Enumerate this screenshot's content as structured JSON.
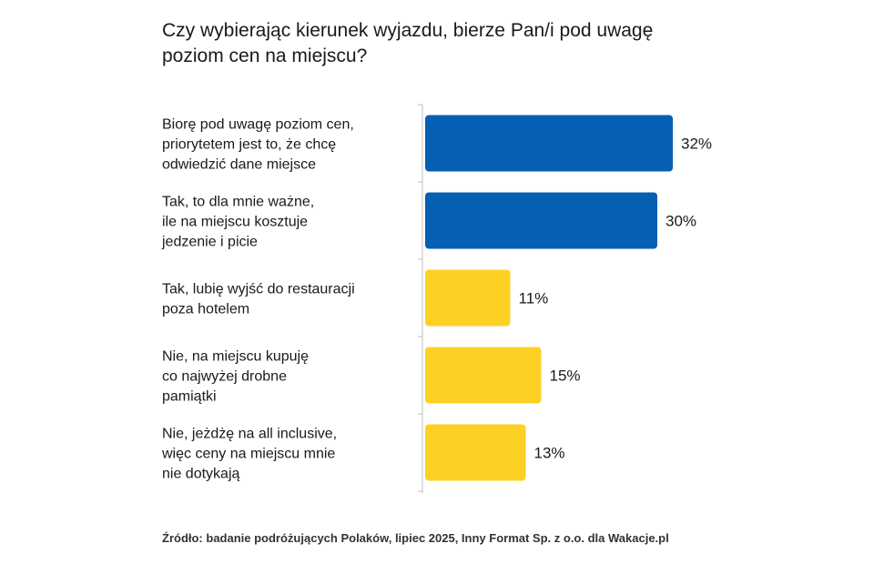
{
  "title": "Czy wybierając kierunek wyjazdu, bierze Pan/i pod uwagę poziom cen na miejscu?",
  "source": "Źródło: badanie podróżujących Polaków, lipiec 2025, Inny Format Sp. z o.o. dla Wakacje.pl",
  "colors": {
    "blue": "#0560b3",
    "yellow": "#fdd124",
    "axis": "#c8c8c8"
  },
  "chart_data": {
    "type": "bar",
    "orientation": "horizontal",
    "categories": [
      [
        "Biorę pod uwagę poziom cen,",
        "priorytetem jest to, że chcę",
        "odwiedzić dane miejsce"
      ],
      [
        "Tak, to dla mnie ważne,",
        "ile na miejscu kosztuje",
        "jedzenie i picie"
      ],
      [
        "Tak, lubię wyjść do restauracji",
        "poza hotelem"
      ],
      [
        "Nie, na miejscu kupuję",
        "co najwyżej drobne",
        "pamiątki"
      ],
      [
        "Nie, jeżdżę na all inclusive,",
        "więc ceny na miejscu mnie",
        "nie dotykają"
      ]
    ],
    "values": [
      32,
      30,
      11,
      15,
      13
    ],
    "value_labels": [
      "32%",
      "30%",
      "11%",
      "15%",
      "13%"
    ],
    "bar_colors": [
      "#0560b3",
      "#0560b3",
      "#fdd124",
      "#fdd124",
      "#fdd124"
    ],
    "unit": "%",
    "grid": false,
    "legend": "none"
  }
}
